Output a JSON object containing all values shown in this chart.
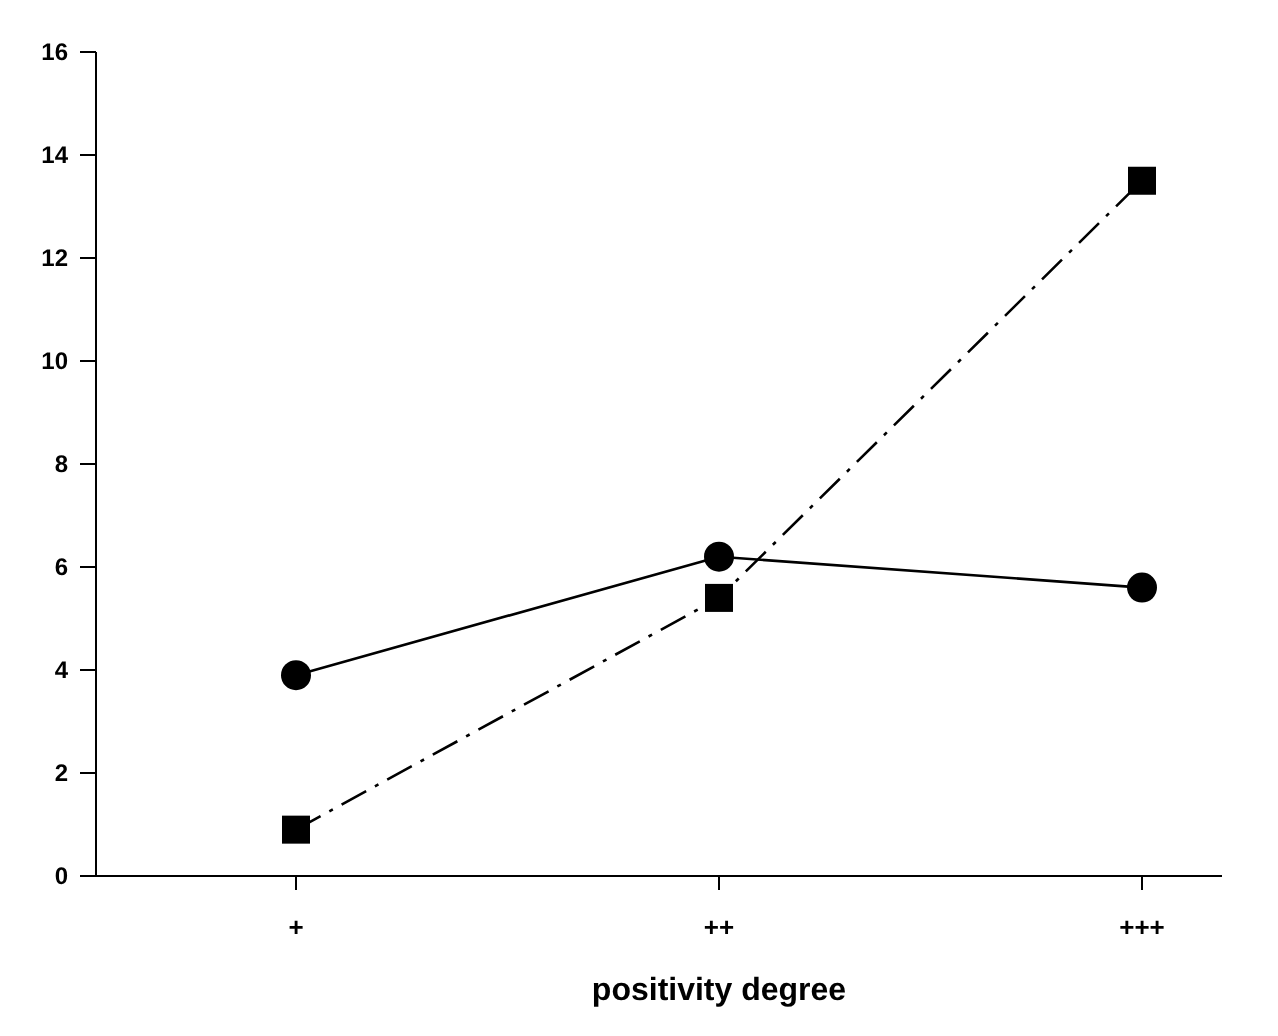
{
  "chart_data": {
    "type": "line",
    "xlabel": "positivity degree",
    "categories": [
      "+",
      "++",
      "+++"
    ],
    "ylim": [
      0,
      16
    ],
    "yticks": [
      0,
      2,
      4,
      6,
      8,
      10,
      12,
      14,
      16
    ],
    "grid": false,
    "series": [
      {
        "color": "#000000",
        "values": [
          3.9,
          6.2,
          5.6
        ],
        "marker": "circle",
        "line_style": "solid"
      },
      {
        "color": "#000000",
        "values": [
          0.9,
          5.4,
          13.5
        ],
        "marker": "square",
        "line_style": "dashdot"
      }
    ]
  }
}
